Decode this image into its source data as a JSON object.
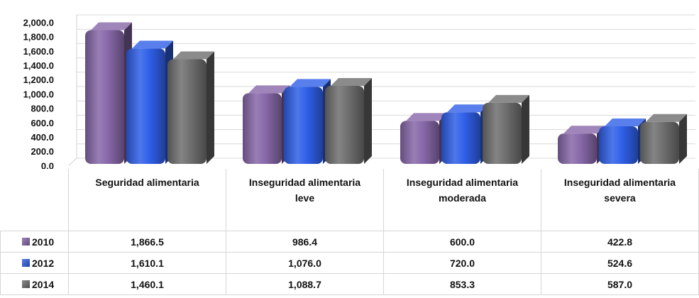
{
  "chart_data": {
    "type": "bar3d",
    "categories": [
      "Seguridad alimentaria",
      "Inseguridad alimentaria leve",
      "Inseguridad alimentaria moderada",
      "Inseguridad alimentaria severa"
    ],
    "series": [
      {
        "name": "2010",
        "color": "#8767a8",
        "values": [
          1866.5,
          986.4,
          600.0,
          422.8
        ],
        "value_labels": [
          "1,866.5",
          "986.4",
          "600.0",
          "422.8"
        ]
      },
      {
        "name": "2012",
        "color": "#2f5fe8",
        "values": [
          1610.1,
          1076.0,
          720.0,
          524.6
        ],
        "value_labels": [
          "1,610.1",
          "1,076.0",
          "720.0",
          "524.6"
        ]
      },
      {
        "name": "2014",
        "color": "#6e6e6e",
        "values": [
          1460.1,
          1088.7,
          853.3,
          587.0
        ],
        "value_labels": [
          "1,460.1",
          "1,088.7",
          "853.3",
          "587.0"
        ]
      }
    ],
    "ylim": [
      0,
      2000
    ],
    "yticks": [
      {
        "value": 0,
        "label": "0.0"
      },
      {
        "value": 200,
        "label": "200.0"
      },
      {
        "value": 400,
        "label": "400.0"
      },
      {
        "value": 600,
        "label": "600.0"
      },
      {
        "value": 800,
        "label": "800.0"
      },
      {
        "value": 1000,
        "label": "1,000.0"
      },
      {
        "value": 1200,
        "label": "1,200.0"
      },
      {
        "value": 1400,
        "label": "1,400.0"
      },
      {
        "value": 1600,
        "label": "1,600.0"
      },
      {
        "value": 1800,
        "label": "1,800.0"
      },
      {
        "value": 2000,
        "label": "2,000.0"
      }
    ],
    "grid": true
  }
}
